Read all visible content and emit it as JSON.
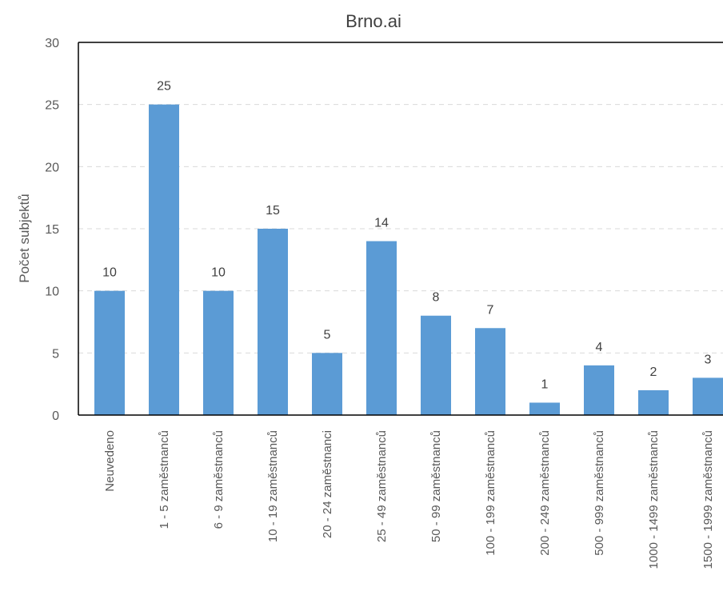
{
  "chart_data": {
    "type": "bar",
    "title": "Brno.ai",
    "ylabel": "Počet subjektů",
    "xlabel": "",
    "ylim": [
      0,
      30
    ],
    "yticks": [
      "0",
      "5",
      "10",
      "15",
      "20",
      "25",
      "30"
    ],
    "grid": true,
    "legend": "none",
    "bar_color": "#5b9bd5",
    "grid_color": "#d9d9d9",
    "axis_color": "#000000",
    "categories": [
      "Neuvedeno",
      "1 - 5 zaměstnanců",
      "6 - 9 zaměstnanců",
      "10 - 19 zaměstnanců",
      "20 - 24 zaměstnanci",
      "25 - 49 zaměstnanců",
      "50 - 99 zaměstnanců",
      "100 - 199 zaměstnanců",
      "200 - 249 zaměstnanců",
      "500 - 999 zaměstnanců",
      "1000 - 1499 zaměstnanců",
      "1500 - 1999 zaměstnanců"
    ],
    "values": [
      10,
      25,
      10,
      15,
      5,
      14,
      8,
      7,
      1,
      4,
      2,
      3
    ]
  }
}
